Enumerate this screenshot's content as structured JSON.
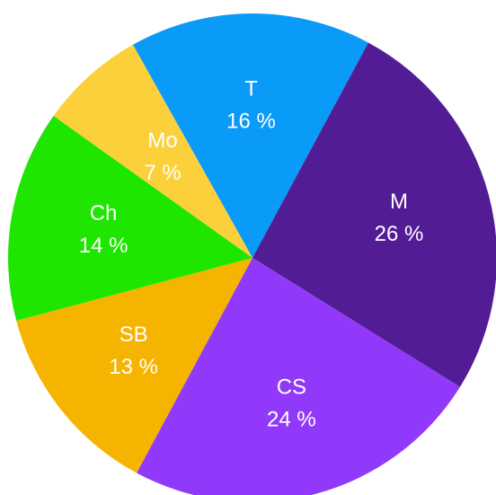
{
  "chart_data": {
    "type": "pie",
    "categories": [
      "T",
      "M",
      "CS",
      "SB",
      "Ch",
      "Mo"
    ],
    "values": [
      16,
      26,
      24,
      13,
      14,
      7
    ],
    "value_labels": [
      "16 %",
      "26 %",
      "24 %",
      "13 %",
      "14 %",
      "7 %"
    ],
    "colors": [
      "#0a9af7",
      "#521c94",
      "#9139fa",
      "#f5b400",
      "#1ee600",
      "#fbd03a"
    ]
  }
}
